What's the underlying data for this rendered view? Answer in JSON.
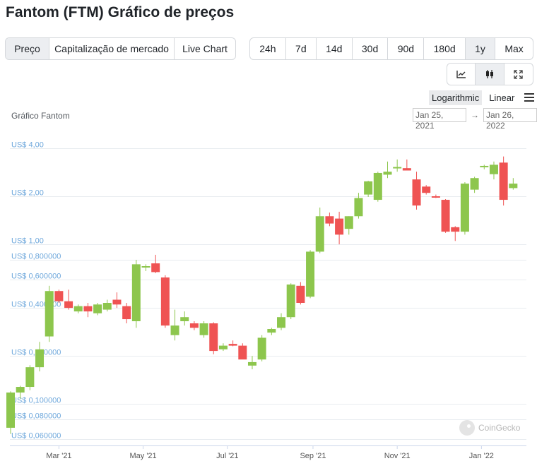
{
  "page": {
    "title": "Fantom (FTM) Gráfico de preços"
  },
  "tabs": [
    "Preço",
    "Capitalização de mercado",
    "Live Chart"
  ],
  "ranges": [
    "24h",
    "7d",
    "14d",
    "30d",
    "90d",
    "180d",
    "1y",
    "Max"
  ],
  "active_range": "1y",
  "icons": [
    "line-chart-icon",
    "candlestick-icon",
    "expand-icon"
  ],
  "scale": {
    "log": "Logarithmic",
    "linear": "Linear",
    "active": "Logarithmic"
  },
  "chart_title": "Gráfico Fantom",
  "date_range": {
    "from": "Jan 25, 2021",
    "arrow": "→",
    "to": "Jan 26, 2022"
  },
  "watermark": "CoinGecko",
  "colors": {
    "up": "#8dc64d",
    "down": "#ef5353",
    "axis_label": "#6fa8dc",
    "grid": "#e8ecf0"
  },
  "chart_data": {
    "type": "candlestick",
    "y_scale": "log",
    "ylim": [
      0.055,
      5.0
    ],
    "y_ticks": [
      {
        "value": 4.0,
        "label": "US$ 4,00"
      },
      {
        "value": 2.0,
        "label": "US$ 2,00"
      },
      {
        "value": 1.0,
        "label": "US$ 1,00"
      },
      {
        "value": 0.8,
        "label": "US$ 0,800000"
      },
      {
        "value": 0.6,
        "label": "US$ 0,600000"
      },
      {
        "value": 0.4,
        "label": "US$ 0,400000"
      },
      {
        "value": 0.2,
        "label": "US$ 0,200000"
      },
      {
        "value": 0.1,
        "label": "US$ 0,100000"
      },
      {
        "value": 0.08,
        "label": "US$ 0,080000"
      },
      {
        "value": 0.06,
        "label": "US$ 0,060000"
      }
    ],
    "x_ticks": [
      {
        "date": "2021-03-01",
        "label": "Mar '21"
      },
      {
        "date": "2021-05-01",
        "label": "May '21"
      },
      {
        "date": "2021-07-01",
        "label": "Jul '21"
      },
      {
        "date": "2021-09-01",
        "label": "Sep '21"
      },
      {
        "date": "2021-11-01",
        "label": "Nov '21"
      },
      {
        "date": "2022-01-01",
        "label": "Jan '22"
      }
    ],
    "x_range": [
      "2021-01-25",
      "2022-01-31"
    ],
    "candles": [
      {
        "date": "2021-01-25",
        "open": 0.071,
        "high": 0.12,
        "low": 0.065,
        "close": 0.118
      },
      {
        "date": "2021-02-01",
        "open": 0.118,
        "high": 0.13,
        "low": 0.108,
        "close": 0.128
      },
      {
        "date": "2021-02-08",
        "open": 0.128,
        "high": 0.175,
        "low": 0.122,
        "close": 0.17
      },
      {
        "date": "2021-02-15",
        "open": 0.17,
        "high": 0.245,
        "low": 0.16,
        "close": 0.22
      },
      {
        "date": "2021-02-22",
        "open": 0.265,
        "high": 0.55,
        "low": 0.245,
        "close": 0.51
      },
      {
        "date": "2021-03-01",
        "open": 0.51,
        "high": 0.52,
        "low": 0.43,
        "close": 0.44
      },
      {
        "date": "2021-03-08",
        "open": 0.44,
        "high": 0.52,
        "low": 0.39,
        "close": 0.4
      },
      {
        "date": "2021-03-15",
        "open": 0.38,
        "high": 0.42,
        "low": 0.37,
        "close": 0.41
      },
      {
        "date": "2021-03-22",
        "open": 0.41,
        "high": 0.43,
        "low": 0.35,
        "close": 0.38
      },
      {
        "date": "2021-03-29",
        "open": 0.37,
        "high": 0.43,
        "low": 0.36,
        "close": 0.42
      },
      {
        "date": "2021-04-05",
        "open": 0.39,
        "high": 0.45,
        "low": 0.38,
        "close": 0.43
      },
      {
        "date": "2021-04-12",
        "open": 0.45,
        "high": 0.5,
        "low": 0.4,
        "close": 0.42
      },
      {
        "date": "2021-04-19",
        "open": 0.41,
        "high": 0.43,
        "low": 0.32,
        "close": 0.34
      },
      {
        "date": "2021-04-26",
        "open": 0.33,
        "high": 0.8,
        "low": 0.3,
        "close": 0.75
      },
      {
        "date": "2021-05-03",
        "open": 0.72,
        "high": 0.75,
        "low": 0.68,
        "close": 0.73
      },
      {
        "date": "2021-05-10",
        "open": 0.76,
        "high": 0.86,
        "low": 0.66,
        "close": 0.67
      },
      {
        "date": "2021-05-17",
        "open": 0.62,
        "high": 0.64,
        "low": 0.3,
        "close": 0.31
      },
      {
        "date": "2021-05-24",
        "open": 0.27,
        "high": 0.39,
        "low": 0.25,
        "close": 0.31
      },
      {
        "date": "2021-05-31",
        "open": 0.33,
        "high": 0.38,
        "low": 0.31,
        "close": 0.35
      },
      {
        "date": "2021-06-07",
        "open": 0.32,
        "high": 0.33,
        "low": 0.29,
        "close": 0.3
      },
      {
        "date": "2021-06-14",
        "open": 0.27,
        "high": 0.33,
        "low": 0.26,
        "close": 0.32
      },
      {
        "date": "2021-06-21",
        "open": 0.32,
        "high": 0.325,
        "low": 0.205,
        "close": 0.215
      },
      {
        "date": "2021-06-28",
        "open": 0.22,
        "high": 0.24,
        "low": 0.215,
        "close": 0.232
      },
      {
        "date": "2021-07-05",
        "open": 0.238,
        "high": 0.25,
        "low": 0.23,
        "close": 0.232
      },
      {
        "date": "2021-07-12",
        "open": 0.232,
        "high": 0.24,
        "low": 0.2,
        "close": 0.19
      },
      {
        "date": "2021-07-19",
        "open": 0.174,
        "high": 0.2,
        "low": 0.165,
        "close": 0.183
      },
      {
        "date": "2021-07-26",
        "open": 0.19,
        "high": 0.27,
        "low": 0.185,
        "close": 0.26
      },
      {
        "date": "2021-08-02",
        "open": 0.28,
        "high": 0.3,
        "low": 0.27,
        "close": 0.295
      },
      {
        "date": "2021-08-09",
        "open": 0.3,
        "high": 0.37,
        "low": 0.29,
        "close": 0.35
      },
      {
        "date": "2021-08-16",
        "open": 0.35,
        "high": 0.57,
        "low": 0.34,
        "close": 0.56
      },
      {
        "date": "2021-08-23",
        "open": 0.55,
        "high": 0.58,
        "low": 0.42,
        "close": 0.43
      },
      {
        "date": "2021-08-30",
        "open": 0.47,
        "high": 0.92,
        "low": 0.46,
        "close": 0.9
      },
      {
        "date": "2021-09-06",
        "open": 0.9,
        "high": 1.7,
        "low": 0.88,
        "close": 1.5
      },
      {
        "date": "2021-09-13",
        "open": 1.5,
        "high": 1.58,
        "low": 1.3,
        "close": 1.35
      },
      {
        "date": "2021-09-20",
        "open": 1.45,
        "high": 1.6,
        "low": 1.0,
        "close": 1.15
      },
      {
        "date": "2021-09-27",
        "open": 1.25,
        "high": 1.5,
        "low": 1.15,
        "close": 1.5
      },
      {
        "date": "2021-10-04",
        "open": 1.5,
        "high": 2.1,
        "low": 1.45,
        "close": 1.95
      },
      {
        "date": "2021-10-11",
        "open": 2.05,
        "high": 2.5,
        "low": 1.98,
        "close": 2.48
      },
      {
        "date": "2021-10-18",
        "open": 1.9,
        "high": 2.85,
        "low": 1.85,
        "close": 2.8
      },
      {
        "date": "2021-10-25",
        "open": 2.73,
        "high": 3.3,
        "low": 2.6,
        "close": 2.85
      },
      {
        "date": "2021-11-01",
        "open": 3.0,
        "high": 3.4,
        "low": 2.85,
        "close": 3.05
      },
      {
        "date": "2021-11-08",
        "open": 3.0,
        "high": 3.4,
        "low": 2.9,
        "close": 2.9
      },
      {
        "date": "2021-11-15",
        "open": 2.55,
        "high": 2.85,
        "low": 1.65,
        "close": 1.75
      },
      {
        "date": "2021-11-22",
        "open": 2.3,
        "high": 2.35,
        "low": 2.05,
        "close": 2.1
      },
      {
        "date": "2021-11-29",
        "open": 2.0,
        "high": 2.05,
        "low": 1.95,
        "close": 1.98
      },
      {
        "date": "2021-12-06",
        "open": 1.9,
        "high": 1.92,
        "low": 1.18,
        "close": 1.2
      },
      {
        "date": "2021-12-13",
        "open": 1.28,
        "high": 1.3,
        "low": 1.05,
        "close": 1.2
      },
      {
        "date": "2021-12-20",
        "open": 1.2,
        "high": 2.45,
        "low": 1.15,
        "close": 2.4
      },
      {
        "date": "2021-12-27",
        "open": 2.2,
        "high": 2.65,
        "low": 2.1,
        "close": 2.6
      },
      {
        "date": "2022-01-03",
        "open": 3.05,
        "high": 3.15,
        "low": 2.95,
        "close": 3.1
      },
      {
        "date": "2022-01-10",
        "open": 2.75,
        "high": 3.3,
        "low": 2.55,
        "close": 3.15
      },
      {
        "date": "2022-01-17",
        "open": 3.25,
        "high": 3.55,
        "low": 1.75,
        "close": 1.9
      },
      {
        "date": "2022-01-24",
        "open": 2.25,
        "high": 2.6,
        "low": 2.2,
        "close": 2.4
      }
    ]
  }
}
